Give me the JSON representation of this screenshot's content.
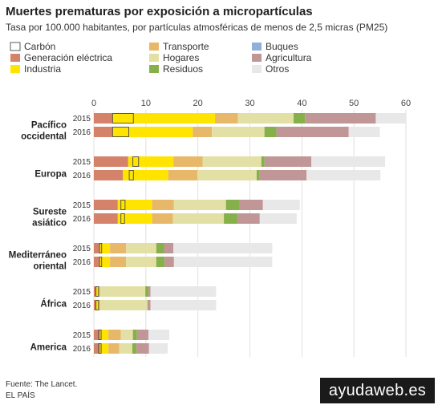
{
  "chart_data": {
    "type": "bar",
    "orientation": "horizontal",
    "stacked": true,
    "title": "Muertes prematuras por exposición a micropartículas",
    "subtitle": "Tasa por 100.000 habitantes, por partículas atmosféricas de menos de 2,5 micras (PM25)",
    "xlim": [
      0,
      60
    ],
    "xticks": [
      "0",
      "10",
      "20",
      "30",
      "40",
      "50",
      "60"
    ],
    "grid": true,
    "legend_position": "top",
    "components": [
      {
        "key": "carbon",
        "name": "Carbón",
        "color": "#ffffff"
      },
      {
        "key": "transporte",
        "name": "Transporte",
        "color": "#e8b86a"
      },
      {
        "key": "buques",
        "name": "Buques",
        "color": "#8fb0d8"
      },
      {
        "key": "generacion",
        "name": "Generación eléctrica",
        "color": "#d4836a"
      },
      {
        "key": "hogares",
        "name": "Hogares",
        "color": "#e3e0a6"
      },
      {
        "key": "agricultura",
        "name": "Agricultura",
        "color": "#c09696"
      },
      {
        "key": "industria",
        "name": "Industria",
        "color": "#ffe400"
      },
      {
        "key": "residuos",
        "name": "Residuos",
        "color": "#86b04a"
      },
      {
        "key": "otros",
        "name": "Otros",
        "color": "#e8e8e8"
      }
    ],
    "regions": [
      {
        "name": [
          "Pacífico",
          "occidental"
        ],
        "rows": [
          {
            "year": "2015",
            "values": {
              "generacion": 3.6,
              "industria": 19.7,
              "transporte": 4.4,
              "hogares": 10.7,
              "residuos": 2.2,
              "agricultura": 13.6,
              "otros": 5.8
            },
            "carbon_range": [
              3.6,
              7.6
            ]
          },
          {
            "year": "2016",
            "values": {
              "generacion": 3.6,
              "industria": 15.4,
              "transporte": 3.7,
              "hogares": 10.1,
              "residuos": 2.3,
              "agricultura": 13.9,
              "otros": 6.0
            },
            "carbon_range": [
              3.6,
              6.7
            ]
          }
        ]
      },
      {
        "name": [
          "Europa"
        ],
        "rows": [
          {
            "year": "2015",
            "values": {
              "generacion": 6.6,
              "industria": 8.7,
              "transporte": 5.6,
              "hogares": 11.3,
              "residuos": 0.6,
              "agricultura": 9.0,
              "otros": 14.2
            },
            "carbon_range": [
              7.5,
              8.6
            ]
          },
          {
            "year": "2016",
            "values": {
              "generacion": 5.6,
              "industria": 8.7,
              "transporte": 5.6,
              "hogares": 11.4,
              "residuos": 0.6,
              "agricultura": 9.0,
              "otros": 14.2
            },
            "carbon_range": [
              6.8,
              7.6
            ]
          }
        ]
      },
      {
        "name": [
          "Sureste",
          "asiático"
        ],
        "rows": [
          {
            "year": "2015",
            "values": {
              "generacion": 4.6,
              "industria": 6.6,
              "transporte": 4.2,
              "hogares": 10.0,
              "residuos": 2.6,
              "agricultura": 4.5,
              "otros": 7.1
            },
            "carbon_range": [
              5.2,
              6.0
            ]
          },
          {
            "year": "2016",
            "values": {
              "generacion": 4.6,
              "industria": 6.6,
              "transporte": 4.0,
              "hogares": 9.8,
              "residuos": 2.6,
              "agricultura": 4.3,
              "otros": 7.1
            },
            "carbon_range": [
              5.2,
              5.9
            ]
          }
        ]
      },
      {
        "name": [
          "Mediterráneo",
          "oriental"
        ],
        "rows": [
          {
            "year": "2015",
            "values": {
              "generacion": 1.1,
              "industria": 2.0,
              "transporte": 3.1,
              "hogares": 5.8,
              "residuos": 1.5,
              "agricultura": 1.8,
              "otros": 19.0
            },
            "carbon_range": [
              1.1,
              1.5
            ]
          },
          {
            "year": "2016",
            "values": {
              "generacion": 1.1,
              "industria": 2.0,
              "transporte": 3.1,
              "hogares": 5.8,
              "residuos": 1.6,
              "agricultura": 1.8,
              "otros": 18.9
            },
            "carbon_range": [
              1.1,
              1.5
            ]
          }
        ]
      },
      {
        "name": [
          "África"
        ],
        "rows": [
          {
            "year": "2015",
            "values": {
              "generacion": 0.4,
              "industria": 0.5,
              "transporte": 0.3,
              "hogares": 8.7,
              "residuos": 0.6,
              "agricultura": 0.4,
              "otros": 12.6
            },
            "carbon_range": [
              0.4,
              0.9
            ]
          },
          {
            "year": "2016",
            "values": {
              "generacion": 0.4,
              "industria": 0.5,
              "transporte": 0.3,
              "hogares": 9.1,
              "residuos": 0.1,
              "agricultura": 0.5,
              "otros": 12.6
            },
            "carbon_range": [
              0.4,
              0.9
            ]
          }
        ]
      },
      {
        "name": [
          "America"
        ],
        "rows": [
          {
            "year": "2015",
            "values": {
              "generacion": 1.2,
              "industria": 1.6,
              "transporte": 2.4,
              "hogares": 2.3,
              "residuos": 0.8,
              "agricultura": 2.2,
              "otros": 4.0
            },
            "carbon_range": [
              0.9,
              1.4
            ]
          },
          {
            "year": "2016",
            "values": {
              "generacion": 1.2,
              "industria": 1.6,
              "transporte": 2.1,
              "hogares": 2.5,
              "residuos": 0.8,
              "agricultura": 2.4,
              "otros": 3.6
            },
            "carbon_range": [
              0.9,
              1.4
            ]
          }
        ]
      }
    ]
  },
  "footer": {
    "source": "Fuente: The Lancet.",
    "credit": "EL PAÍS"
  },
  "watermark": "ayudaweb.es"
}
